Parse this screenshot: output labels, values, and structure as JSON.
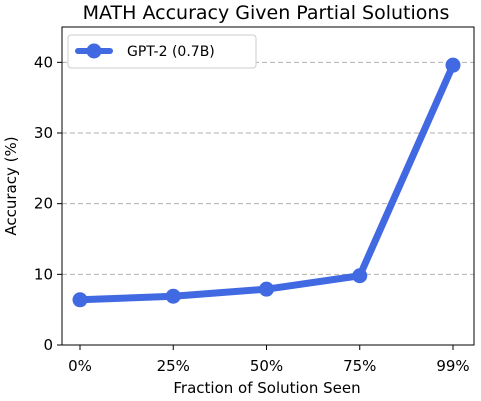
{
  "chart_data": {
    "type": "line",
    "title": "MATH Accuracy Given Partial Solutions",
    "xlabel": "Fraction of Solution Seen",
    "ylabel": "Accuracy (%)",
    "categories": [
      "0%",
      "25%",
      "50%",
      "75%",
      "99%"
    ],
    "y_ticks": [
      0,
      10,
      20,
      30,
      40
    ],
    "ylim": [
      0,
      45
    ],
    "grid": "horizontal dashed",
    "legend_position": "top-left",
    "series": [
      {
        "name": "GPT-2 (0.7B)",
        "values": [
          6.4,
          6.9,
          7.9,
          9.8,
          39.6
        ],
        "color": "#4169e1"
      }
    ]
  }
}
